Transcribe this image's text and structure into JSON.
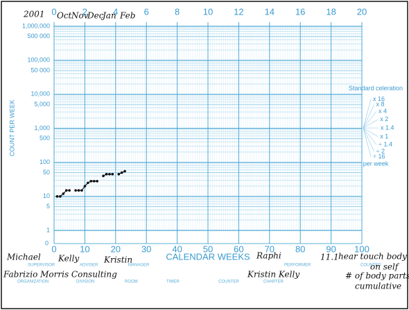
{
  "chart_data": {
    "type": "line",
    "ylog": true,
    "grid": true,
    "y_axis_label": "COUNT PER WEEK",
    "x_axis_label": "CALENDAR WEEKS",
    "zero_label": "0",
    "xlim": [
      0,
      100
    ],
    "xticks": [
      0,
      10,
      20,
      30,
      40,
      50,
      60,
      70,
      80,
      90,
      100
    ],
    "x2lim": [
      0,
      20
    ],
    "x2ticks": [
      0,
      2,
      4,
      6,
      8,
      10,
      12,
      14,
      16,
      18,
      20
    ],
    "ylim": [
      1,
      1000000
    ],
    "yticks": [
      1,
      5,
      10,
      50,
      100,
      500,
      {
        "value": 1000,
        "label": "1,000"
      },
      {
        "value": 5000,
        "label": "5,000"
      },
      {
        "value": 10000,
        "label": "10,000"
      },
      {
        "value": 50000,
        "label": "50 000"
      },
      {
        "value": 100000,
        "label": "100,000"
      },
      {
        "value": 500000,
        "label": "500 000"
      },
      {
        "value": 1000000,
        "label": "1,000,000"
      }
    ],
    "series": [
      {
        "color": "#111111",
        "x": [
          1,
          2,
          3,
          4,
          5,
          6,
          7,
          8,
          9,
          10,
          11,
          12,
          13,
          14,
          15,
          16,
          17,
          18,
          19,
          20,
          21,
          22,
          23
        ],
        "values": [
          10,
          10,
          12,
          15,
          15,
          null,
          15,
          15,
          15,
          20,
          25,
          28,
          28,
          28,
          null,
          40,
          45,
          45,
          45,
          null,
          45,
          50,
          55
        ]
      }
    ],
    "celeration": {
      "title": "Standard celeration",
      "labels": [
        "x 16",
        "x 8",
        "x 4",
        "x 2",
        "x 1.4",
        "x 1",
        "÷ 1.4",
        "÷ 2",
        "÷ 16"
      ],
      "footer": "per week"
    }
  },
  "handwritten": {
    "top": [
      "2001",
      "Oct",
      "Nov",
      "Dec",
      "Jan",
      "Feb"
    ],
    "bottom": [
      "Michael",
      "Kelly",
      "Kristin",
      "Fabrizio Morris Consulting",
      "Raphi",
      "Kristin Kelly",
      "11.1",
      "hear touch body parts",
      "on self",
      "# of body parts",
      "cumulative"
    ]
  },
  "form_labels": [
    "SUPERVISOR",
    "ADVISER",
    "MANAGER",
    "PERFORMER",
    "COUNTED",
    "ORGANIZATION",
    "DIVISION",
    "ROOM",
    "TIMER",
    "COUNTER",
    "CHARTER"
  ]
}
